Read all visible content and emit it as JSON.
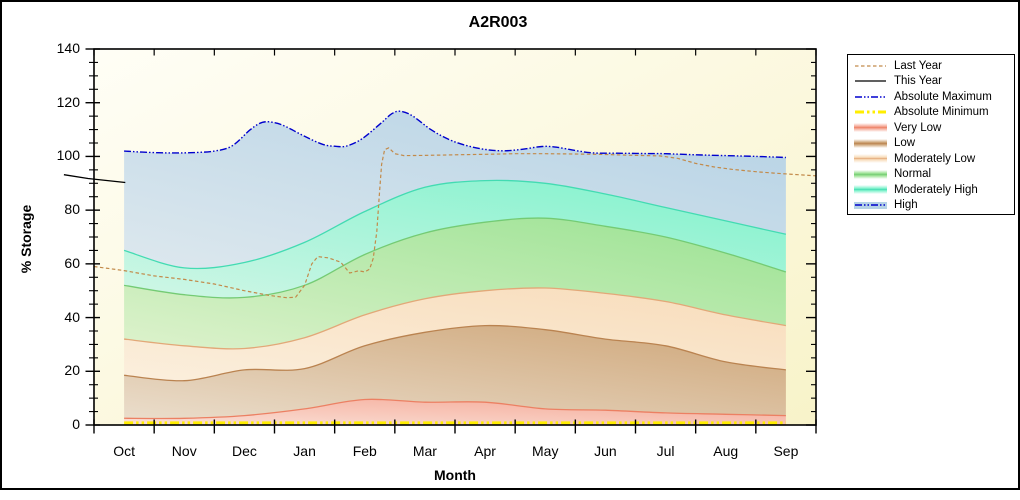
{
  "title": "A2R003",
  "axes": {
    "y_label": "% Storage",
    "x_label": "Month",
    "y_ticks": [
      0,
      20,
      40,
      60,
      80,
      100,
      120,
      140
    ],
    "y_minor_step": 5,
    "ylim": [
      0,
      140
    ],
    "months": [
      "Oct",
      "Nov",
      "Dec",
      "Jan",
      "Feb",
      "Mar",
      "Apr",
      "May",
      "Jun",
      "Jul",
      "Aug",
      "Sep"
    ]
  },
  "colors": {
    "plot_bg_light": "#FFFEF6",
    "plot_bg_dark": "#F8F3C9",
    "frame": "#000000"
  },
  "legend": {
    "items": [
      {
        "label": "Last Year",
        "type": "line",
        "color": "#C28A4A",
        "dash": "3.5 2.5",
        "width": 1.2
      },
      {
        "label": "This Year",
        "type": "line",
        "color": "#000000",
        "dash": "",
        "width": 1.3
      },
      {
        "label": "Absolute Maximum",
        "type": "line",
        "color": "#0000CD",
        "dash": "7 2 1.5 2 1.5 2",
        "width": 1.5
      },
      {
        "label": "Absolute Minimum",
        "type": "line",
        "color": "#FFEE00",
        "dash": "9 3 2.5 3 2.5 3",
        "width": 3
      },
      {
        "label": "Very Low",
        "type": "band",
        "line": "#EC8063",
        "fill": "#F5A896"
      },
      {
        "label": "Low",
        "type": "band",
        "line": "#BA8350",
        "fill": "#CEA577"
      },
      {
        "label": "Moderately Low",
        "type": "band",
        "line": "#E2A878",
        "fill": "#F8DCBA"
      },
      {
        "label": "Normal",
        "type": "band",
        "line": "#74CB74",
        "fill": "#9AE292"
      },
      {
        "label": "Moderately High",
        "type": "band",
        "line": "#43DBB2",
        "fill": "#7FF2CC"
      },
      {
        "label": "High",
        "type": "band_line",
        "line": "#0000CD",
        "dash": "7 2 1.5 2 1.5 2",
        "fill": "#B5D2E5"
      }
    ]
  },
  "chart_data": {
    "type": "area",
    "title": "A2R003",
    "xlabel": "Month",
    "ylabel": "% Storage",
    "ylim": [
      0,
      140
    ],
    "grid": false,
    "legend_position": "outside-right",
    "categories": [
      "Oct",
      "Nov",
      "Dec",
      "Jan",
      "Feb",
      "Mar",
      "Apr",
      "May",
      "Jun",
      "Jul",
      "Aug",
      "Sep"
    ],
    "bands": [
      {
        "name": "Very Low",
        "top": [
          2.5,
          2.5,
          3.5,
          6,
          9.5,
          8.5,
          8.5,
          6,
          5.5,
          4.5,
          4,
          3.5
        ],
        "line": "#EC8063",
        "fill_pale": "#FAE0D6",
        "fill": "#F5A896"
      },
      {
        "name": "Low",
        "top": [
          18.5,
          16.5,
          20.5,
          21,
          29.5,
          34.5,
          37,
          35.5,
          32,
          29.5,
          23.5,
          20.5
        ],
        "line": "#BA8350",
        "fill_pale": "#EADDCB",
        "fill": "#CEA577"
      },
      {
        "name": "Moderately Low",
        "top": [
          32,
          29.5,
          28.5,
          32.5,
          41,
          47,
          50,
          51,
          49,
          46,
          41,
          37
        ],
        "line": "#E2A878",
        "fill_pale": "#FBEFDD",
        "fill": "#F8DCBA"
      },
      {
        "name": "Normal",
        "top": [
          52,
          48.5,
          47.5,
          52,
          63.5,
          71.5,
          75.5,
          77,
          74,
          70,
          64,
          57
        ],
        "line": "#74CB74",
        "fill_pale": "#DDF2CC",
        "fill": "#9AE292"
      },
      {
        "name": "Moderately High",
        "top": [
          65,
          58.5,
          60.5,
          68,
          79.5,
          88.5,
          91,
          90,
          86,
          81,
          76,
          71
        ],
        "line": "#43DBB2",
        "fill_pale": "#D0F6E6",
        "fill": "#7FF2CC"
      },
      {
        "name": "High",
        "top": "abs_max",
        "line": null,
        "fill_pale": "#DDE8EE",
        "fill": "#B5D2E5"
      }
    ],
    "series": {
      "abs_max": {
        "label": "Absolute Maximum",
        "color": "#0000CD",
        "dash": "7 2 1.5 2 1.5 2",
        "width": 1.4,
        "smooth": true,
        "points": [
          [
            0.5,
            102
          ],
          [
            0.8,
            101.6
          ],
          [
            1.2,
            101.3
          ],
          [
            1.6,
            101.4
          ],
          [
            2.0,
            102.0
          ],
          [
            2.3,
            104
          ],
          [
            2.6,
            110
          ],
          [
            2.8,
            112.7
          ],
          [
            3.0,
            112.6
          ],
          [
            3.2,
            111
          ],
          [
            3.5,
            107.5
          ],
          [
            3.8,
            104.5
          ],
          [
            4.0,
            103.8
          ],
          [
            4.2,
            103.9
          ],
          [
            4.45,
            106.5
          ],
          [
            4.75,
            112
          ],
          [
            4.95,
            115.9
          ],
          [
            5.1,
            116.8
          ],
          [
            5.3,
            115
          ],
          [
            5.6,
            110
          ],
          [
            5.9,
            106.3
          ],
          [
            6.2,
            104
          ],
          [
            6.5,
            102.6
          ],
          [
            6.8,
            102.1
          ],
          [
            7.1,
            102.6
          ],
          [
            7.45,
            103.7
          ],
          [
            7.7,
            103.4
          ],
          [
            8.0,
            102.2
          ],
          [
            8.3,
            101.3
          ],
          [
            8.7,
            101.2
          ],
          [
            9.1,
            101.1
          ],
          [
            9.5,
            101
          ],
          [
            10.0,
            100.6
          ],
          [
            10.5,
            100.3
          ],
          [
            11.0,
            100
          ],
          [
            11.5,
            99.6
          ]
        ]
      },
      "abs_min": {
        "label": "Absolute Minimum",
        "color": "#FFEE00",
        "dash": "9 3 2.5 3 2.5 3",
        "width": 3,
        "smooth": false,
        "points": [
          [
            0.5,
            0.8
          ],
          [
            11.5,
            0.8
          ]
        ]
      },
      "last_year": {
        "label": "Last Year",
        "color": "#C28A4A",
        "dash": "3.5 2.5",
        "width": 1.2,
        "smooth": false,
        "points": [
          [
            0,
            59
          ],
          [
            0.5,
            57.5
          ],
          [
            1,
            55.5
          ],
          [
            1.5,
            54.2
          ],
          [
            2,
            52.5
          ],
          [
            2.5,
            50
          ],
          [
            2.9,
            48.3
          ],
          [
            3.2,
            47.4
          ],
          [
            3.35,
            47.6
          ],
          [
            3.5,
            52
          ],
          [
            3.62,
            60
          ],
          [
            3.72,
            62.7
          ],
          [
            3.9,
            62.2
          ],
          [
            4.1,
            60.6
          ],
          [
            4.25,
            56.6
          ],
          [
            4.4,
            57.4
          ],
          [
            4.5,
            57
          ],
          [
            4.58,
            58
          ],
          [
            4.64,
            62
          ],
          [
            4.7,
            72
          ],
          [
            4.74,
            85
          ],
          [
            4.78,
            97
          ],
          [
            4.83,
            102.5
          ],
          [
            4.9,
            103.2
          ],
          [
            5.0,
            101
          ],
          [
            5.15,
            100.3
          ],
          [
            5.5,
            100.4
          ],
          [
            6,
            100.6
          ],
          [
            6.5,
            100.8
          ],
          [
            7,
            101
          ],
          [
            7.5,
            101
          ],
          [
            8,
            100.9
          ],
          [
            8.5,
            100.7
          ],
          [
            9,
            100.4
          ],
          [
            9.4,
            100.2
          ],
          [
            9.7,
            99.3
          ],
          [
            10,
            97.4
          ],
          [
            10.3,
            96.1
          ],
          [
            10.6,
            95.2
          ],
          [
            11,
            94.3
          ],
          [
            11.3,
            93.8
          ],
          [
            11.7,
            93.2
          ],
          [
            12,
            92.8
          ]
        ]
      },
      "this_year": {
        "label": "This Year",
        "color": "#000000",
        "dash": "",
        "width": 1.3,
        "smooth": false,
        "points": [
          [
            -0.5,
            93.2
          ],
          [
            -0.1,
            91.8
          ],
          [
            0.52,
            90.3
          ]
        ]
      }
    }
  }
}
